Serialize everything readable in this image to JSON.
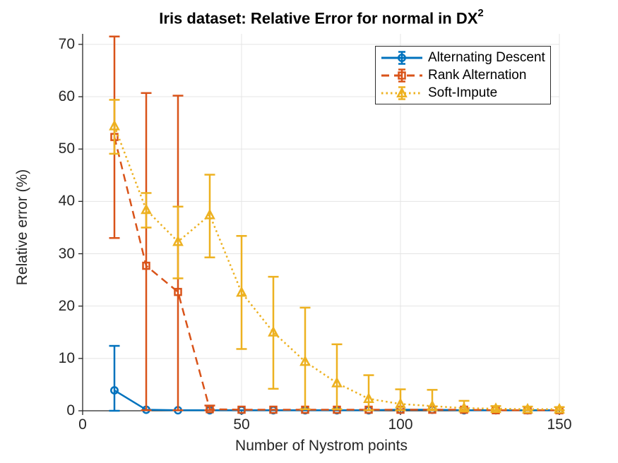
{
  "figure": {
    "title": {
      "text": "Iris dataset: Relative Error for normal in DX",
      "sup": "2"
    },
    "x_label": "Number of Nystrom points",
    "y_label": "Relative error (%)",
    "background": "#ffffff"
  },
  "chart_data": {
    "type": "line",
    "subtype": "errorbar",
    "title": "Iris dataset: Relative Error for normal in DX^2",
    "xlabel": "Number of Nystrom points",
    "ylabel": "Relative error (%)",
    "xlim": [
      0,
      150
    ],
    "ylim": [
      0,
      72
    ],
    "x_ticks": [
      0,
      50,
      100,
      150
    ],
    "y_ticks": [
      0,
      10,
      20,
      30,
      40,
      50,
      60,
      70
    ],
    "grid": true,
    "grid_color": "#e4e4e4",
    "axis_color": "#262626",
    "legend_position": "top-right",
    "x": [
      10,
      20,
      30,
      40,
      50,
      60,
      70,
      80,
      90,
      100,
      110,
      120,
      130,
      140,
      150
    ],
    "series": [
      {
        "name": "Alternating Descent",
        "color": "#0072BD",
        "line_style": "solid",
        "marker": "circle",
        "values": [
          3.9,
          0.2,
          0.1,
          0.1,
          0.1,
          0.1,
          0.1,
          0.1,
          0.1,
          0.2,
          0.2,
          0.1,
          0.1,
          0.1,
          0.1
        ],
        "error_low": [
          0.0,
          null,
          null,
          null,
          null,
          null,
          null,
          null,
          null,
          null,
          null,
          null,
          null,
          null,
          null
        ],
        "error_high": [
          12.4,
          null,
          null,
          null,
          null,
          null,
          null,
          null,
          null,
          null,
          null,
          null,
          null,
          null,
          null
        ]
      },
      {
        "name": "Rank Alternation",
        "color": "#D95319",
        "line_style": "dashed",
        "marker": "square",
        "values": [
          52.3,
          27.7,
          22.7,
          0.3,
          0.2,
          0.2,
          0.2,
          0.2,
          0.2,
          0.2,
          0.2,
          0.2,
          0.1,
          0.1,
          0.1
        ],
        "error_low": [
          33.0,
          0.1,
          0.1,
          0.1,
          null,
          null,
          null,
          null,
          null,
          null,
          null,
          null,
          null,
          null,
          null
        ],
        "error_high": [
          71.5,
          60.7,
          60.2,
          1.0,
          null,
          null,
          null,
          null,
          null,
          null,
          null,
          null,
          null,
          null,
          null
        ]
      },
      {
        "name": "Soft-Impute",
        "color": "#EDB120",
        "line_style": "dotted",
        "marker": "triangle",
        "values": [
          54.4,
          38.4,
          32.3,
          37.4,
          22.6,
          15.0,
          9.4,
          5.3,
          2.3,
          1.3,
          0.9,
          0.5,
          0.4,
          0.3,
          0.3
        ],
        "error_low": [
          49.1,
          35.0,
          25.3,
          29.3,
          11.8,
          4.2,
          0.3,
          0.3,
          0.1,
          0.1,
          0.1,
          0.1,
          0.1,
          0.1,
          0.1
        ],
        "error_high": [
          59.4,
          41.6,
          39.0,
          45.1,
          33.4,
          25.6,
          19.7,
          12.7,
          6.8,
          4.1,
          4.0,
          1.9,
          0.9,
          0.8,
          0.7
        ]
      }
    ]
  }
}
